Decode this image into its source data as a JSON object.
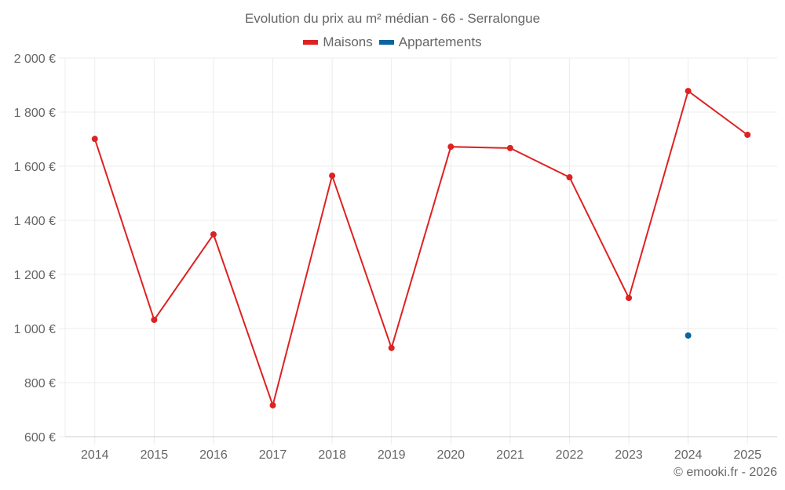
{
  "header": {
    "title": "Evolution du prix au m² médian - 66 - Serralongue"
  },
  "legend": {
    "items": [
      {
        "label": "Maisons",
        "color": "#dd2222"
      },
      {
        "label": "Appartements",
        "color": "#0a64a0"
      }
    ]
  },
  "footer": {
    "credit": "© emooki.fr - 2026"
  },
  "colors": {
    "maisons": "#dd2222",
    "appartements": "#0a64a0",
    "grid": "#ececec",
    "axis": "#cccccc",
    "text": "#666666"
  },
  "chart_data": {
    "type": "line",
    "title": "Evolution du prix au m² médian - 66 - Serralongue",
    "xlabel": "",
    "ylabel": "",
    "categories": [
      "2014",
      "2015",
      "2016",
      "2017",
      "2018",
      "2019",
      "2020",
      "2021",
      "2022",
      "2023",
      "2024",
      "2025"
    ],
    "series": [
      {
        "name": "Maisons",
        "color": "#dd2222",
        "values": [
          1701,
          1032,
          1348,
          716,
          1565,
          928,
          1672,
          1667,
          1559,
          1113,
          1878,
          1716
        ]
      },
      {
        "name": "Appartements",
        "color": "#0a64a0",
        "values": [
          null,
          null,
          null,
          null,
          null,
          null,
          null,
          null,
          null,
          null,
          974,
          null
        ]
      }
    ],
    "ylim": [
      600,
      2000
    ],
    "yticks": [
      600,
      800,
      1000,
      1200,
      1400,
      1600,
      1800,
      2000
    ],
    "ytick_labels": [
      "600 €",
      "800 €",
      "1 000 €",
      "1 200 €",
      "1 400 €",
      "1 600 €",
      "1 800 €",
      "2 000 €"
    ],
    "grid": true,
    "legend_position": "top"
  }
}
